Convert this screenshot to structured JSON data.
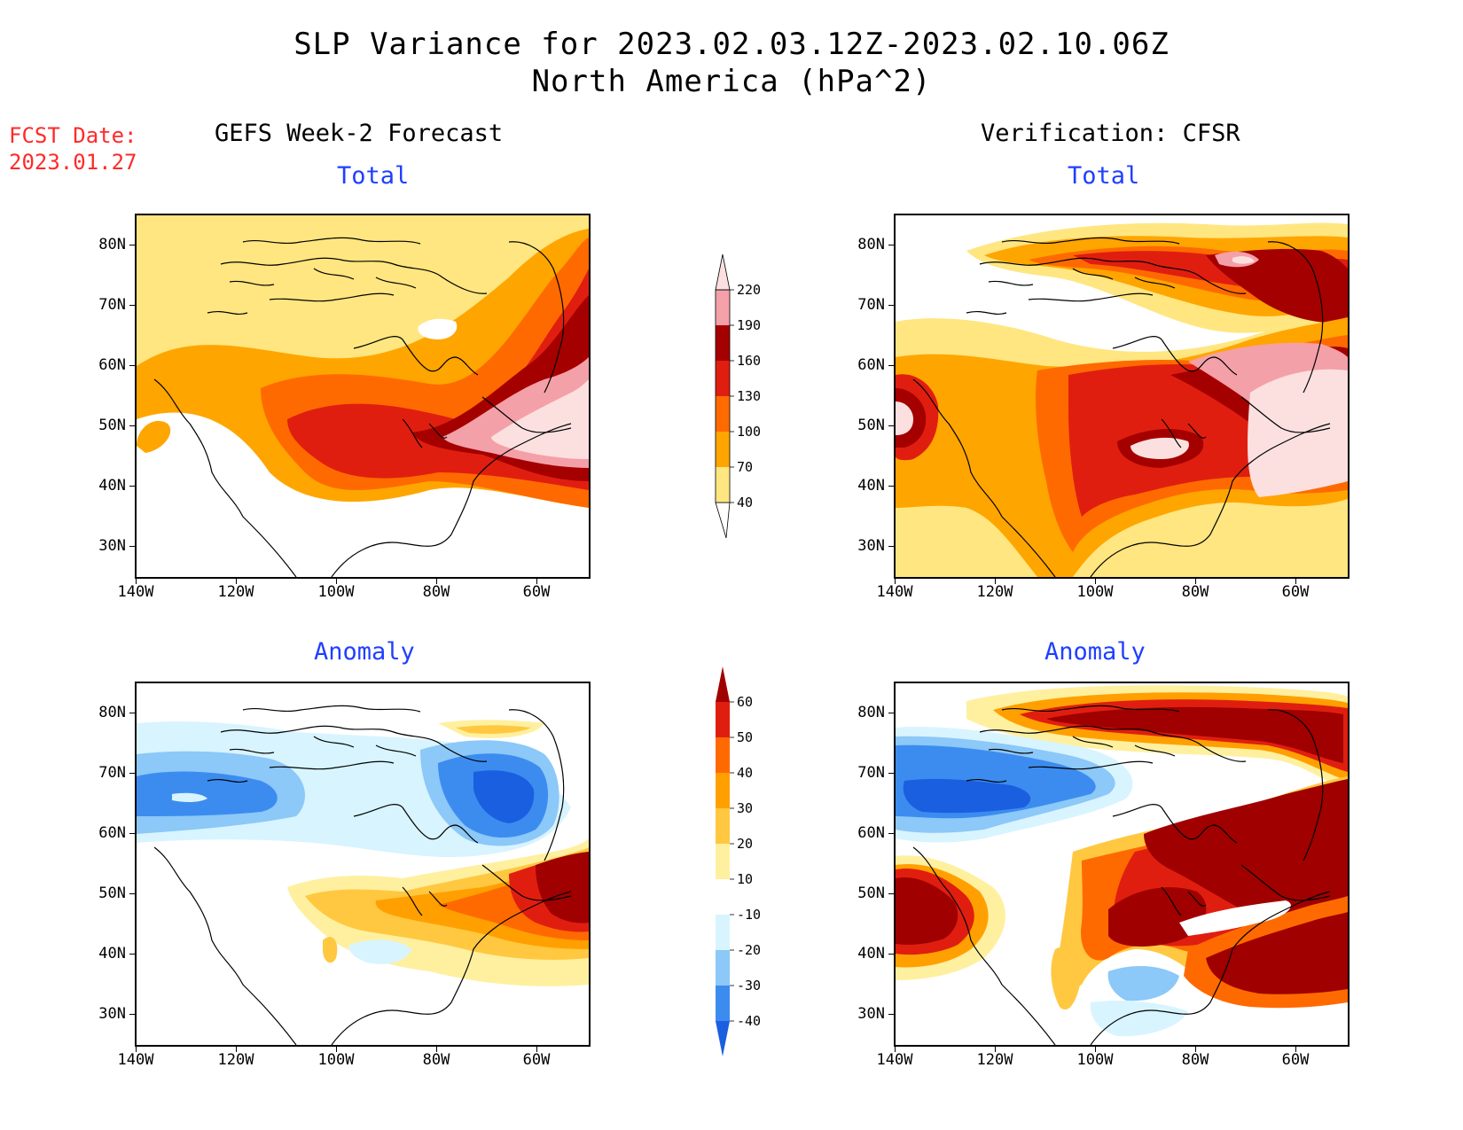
{
  "title": {
    "line1": "SLP Variance for 2023.02.03.12Z-2023.02.10.06Z",
    "line2": "North America (hPa^2)"
  },
  "fcst_date": {
    "label": "FCST Date:",
    "value": "2023.01.27"
  },
  "columns": {
    "left": "GEFS Week-2 Forecast",
    "right": "Verification: CFSR"
  },
  "panels": {
    "total_label": "Total",
    "anomaly_label": "Anomaly"
  },
  "axes": {
    "lat_labels": [
      "80N",
      "70N",
      "60N",
      "50N",
      "40N",
      "30N"
    ],
    "lon_labels": [
      "140W",
      "120W",
      "100W",
      "80W",
      "60W"
    ]
  },
  "colorbars": {
    "total": {
      "levels": [
        "40",
        "70",
        "100",
        "130",
        "160",
        "190",
        "220"
      ],
      "colors": [
        "#ffe680",
        "#ffa500",
        "#ff6a00",
        "#e01e10",
        "#a50000",
        "#f4a0a8",
        "#fce0e0"
      ]
    },
    "anomaly": {
      "levels": [
        "-40",
        "-30",
        "-20",
        "-10",
        "10",
        "20",
        "30",
        "40",
        "50",
        "60"
      ],
      "colors": [
        "#1a5fe0",
        "#3c8cf0",
        "#8cc8f8",
        "#d8f4ff",
        "#ffffff",
        "#fff0a0",
        "#ffc840",
        "#ffa000",
        "#ff6a00",
        "#e01e10",
        "#a00000"
      ]
    }
  },
  "colors": {
    "fcst_text": "#ff2a2a",
    "subtitle_text": "#1f3fff"
  }
}
